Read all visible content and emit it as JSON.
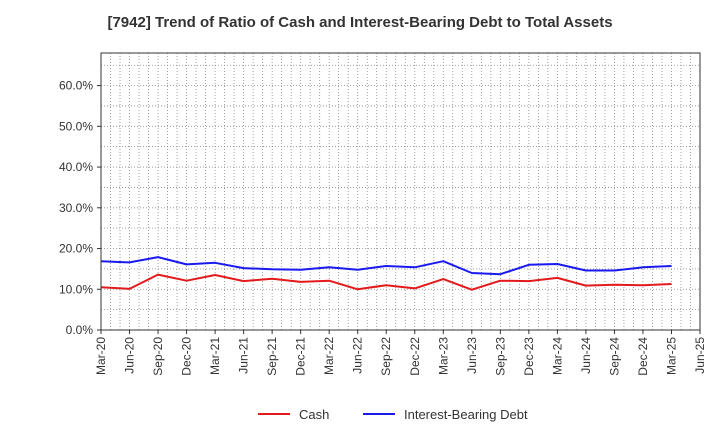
{
  "chart_data": {
    "type": "line",
    "title": "[7942]  Trend of Ratio of Cash and Interest-Bearing Debt to Total Assets",
    "x": [
      "Mar-20",
      "Jun-20",
      "Sep-20",
      "Dec-20",
      "Mar-21",
      "Jun-21",
      "Sep-21",
      "Dec-21",
      "Mar-22",
      "Jun-22",
      "Sep-22",
      "Dec-22",
      "Mar-23",
      "Jun-23",
      "Sep-23",
      "Dec-23",
      "Mar-24",
      "Jun-24",
      "Sep-24",
      "Dec-24",
      "Mar-25",
      "Jun-25"
    ],
    "ylim": [
      0,
      0.68
    ],
    "yticks": [
      0,
      0.1,
      0.2,
      0.3,
      0.4,
      0.5,
      0.6
    ],
    "ytick_labels": [
      "0.0%",
      "10.0%",
      "20.0%",
      "30.0%",
      "40.0%",
      "50.0%",
      "60.0%"
    ],
    "grid": true,
    "legend_position": "bottom-center",
    "series": [
      {
        "name": "Cash",
        "color": "#e31a1c",
        "values": [
          0.105,
          0.101,
          0.136,
          0.121,
          0.135,
          0.12,
          0.126,
          0.118,
          0.121,
          0.1,
          0.11,
          0.102,
          0.125,
          0.099,
          0.121,
          0.12,
          0.128,
          0.109,
          0.111,
          0.11,
          0.113,
          null
        ]
      },
      {
        "name": "Interest-Bearing Debt",
        "color": "#1a1aee",
        "values": [
          0.169,
          0.166,
          0.179,
          0.161,
          0.165,
          0.152,
          0.149,
          0.148,
          0.154,
          0.148,
          0.157,
          0.154,
          0.169,
          0.14,
          0.137,
          0.16,
          0.162,
          0.146,
          0.146,
          0.154,
          0.157,
          null
        ]
      }
    ]
  }
}
